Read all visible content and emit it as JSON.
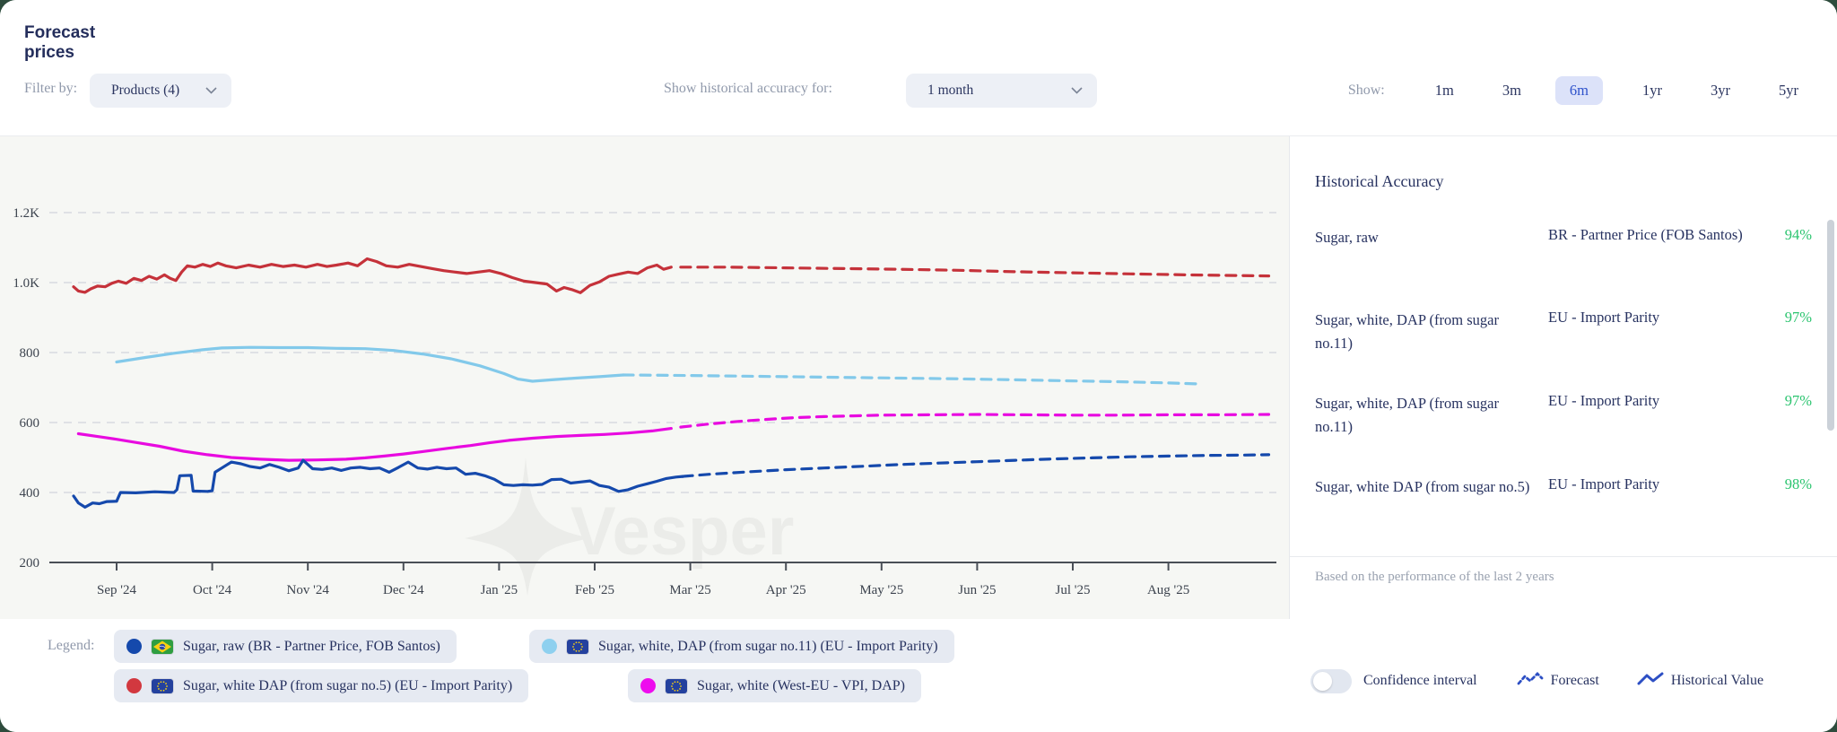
{
  "header": {
    "title": "Forecast prices",
    "filter_label": "Filter by:",
    "filter_value": "Products (4)",
    "accuracy_label": "Show historical accuracy for:",
    "accuracy_value": "1 month",
    "show_label": "Show:",
    "ranges": [
      "1m",
      "3m",
      "6m",
      "1yr",
      "3yr",
      "5yr"
    ],
    "selected_range": "6m"
  },
  "accuracy_panel": {
    "title": "Historical Accuracy",
    "rows": [
      {
        "product": "Sugar, raw",
        "source": "BR - Partner Price (FOB Santos)",
        "accuracy": "94%"
      },
      {
        "product": "Sugar, white, DAP (from sugar no.11)",
        "source": "EU - Import Parity",
        "accuracy": "97%"
      },
      {
        "product": "Sugar, white, DAP (from sugar no.11)",
        "source": "EU - Import Parity",
        "accuracy": "97%"
      },
      {
        "product": "Sugar, white DAP (from sugar no.5)",
        "source": "EU - Import Parity",
        "accuracy": "98%"
      }
    ],
    "footnote": "Based on the performance of the last 2 years"
  },
  "legend": {
    "label": "Legend:",
    "items": [
      {
        "label": "Sugar, raw (BR - Partner Price, FOB Santos)",
        "color": "#1549ac",
        "flag": "br"
      },
      {
        "label": "Sugar, white, DAP (from sugar no.11) (EU - Import Parity)",
        "color": "#8ed0ef",
        "flag": "eu"
      },
      {
        "label": "Sugar, white DAP (from sugar no.5) (EU - Import Parity)",
        "color": "#d2383f",
        "flag": "eu"
      },
      {
        "label": "Sugar, white (West-EU - VPI, DAP)",
        "color": "#ee0cee",
        "flag": "eu"
      }
    ]
  },
  "controls": {
    "confidence_label": "Confidence interval",
    "confidence_on": false,
    "forecast_label": "Forecast",
    "historical_label": "Historical Value"
  },
  "watermark": "Vesper",
  "colors": {
    "accent_blue": "#3053cb",
    "navy_text": "#273260",
    "green_accuracy": "#2bc46f"
  },
  "chart_data": {
    "type": "line",
    "title": "Forecast prices (6m view)",
    "xlabel": "",
    "ylabel": "",
    "ylim": [
      200,
      1250
    ],
    "grid": true,
    "x_labels": [
      "Sep '24",
      "Oct '24",
      "Nov '24",
      "Dec '24",
      "Jan '25",
      "Feb '25",
      "Mar '25",
      "Apr '25",
      "May '25",
      "Jun '25",
      "Jul '25",
      "Aug '25"
    ],
    "y_ticks": [
      {
        "label": "1.2K",
        "value": 1200
      },
      {
        "label": "1.0K",
        "value": 1000
      },
      {
        "label": "800",
        "value": 800
      },
      {
        "label": "600",
        "value": 600
      },
      {
        "label": "400",
        "value": 400
      },
      {
        "label": "200",
        "value": 200
      }
    ],
    "x_unit": "month index, 0 = Sep '24 tick",
    "series": [
      {
        "name": "Sugar, white, DAP (from sugar no.11) (EU - Import Parity)",
        "color": "#82c9ea",
        "historical": [
          [
            0,
            773
          ],
          [
            0.3,
            786
          ],
          [
            0.6,
            798
          ],
          [
            0.9,
            808
          ],
          [
            1.1,
            813
          ],
          [
            1.4,
            815
          ],
          [
            1.7,
            814
          ],
          [
            2.0,
            814
          ],
          [
            2.3,
            812
          ],
          [
            2.6,
            811
          ],
          [
            2.9,
            806
          ],
          [
            3.2,
            796
          ],
          [
            3.5,
            782
          ],
          [
            3.8,
            762
          ],
          [
            4.05,
            740
          ],
          [
            4.2,
            724
          ],
          [
            4.35,
            718
          ],
          [
            4.55,
            722
          ],
          [
            4.8,
            727
          ],
          [
            5.05,
            731
          ],
          [
            5.3,
            736
          ]
        ],
        "forecast": [
          [
            5.3,
            736
          ],
          [
            5.8,
            735
          ],
          [
            6.4,
            733
          ],
          [
            7.0,
            731
          ],
          [
            7.6,
            729
          ],
          [
            8.2,
            727
          ],
          [
            8.8,
            725
          ],
          [
            9.4,
            722
          ],
          [
            10.0,
            719
          ],
          [
            10.6,
            716
          ],
          [
            11.0,
            713
          ],
          [
            11.35,
            710
          ]
        ]
      },
      {
        "name": "Sugar, white DAP (from sugar no.5) (EU - Import Parity)",
        "color": "#c5323a",
        "historical": [
          [
            -0.45,
            988
          ],
          [
            -0.4,
            976
          ],
          [
            -0.33,
            972
          ],
          [
            -0.27,
            982
          ],
          [
            -0.2,
            990
          ],
          [
            -0.12,
            988
          ],
          [
            -0.05,
            998
          ],
          [
            0.02,
            1004
          ],
          [
            0.1,
            998
          ],
          [
            0.18,
            1012
          ],
          [
            0.26,
            1006
          ],
          [
            0.34,
            1018
          ],
          [
            0.42,
            1010
          ],
          [
            0.5,
            1022
          ],
          [
            0.56,
            1012
          ],
          [
            0.62,
            1006
          ],
          [
            0.68,
            1030
          ],
          [
            0.74,
            1048
          ],
          [
            0.82,
            1044
          ],
          [
            0.9,
            1052
          ],
          [
            0.98,
            1046
          ],
          [
            1.06,
            1056
          ],
          [
            1.14,
            1048
          ],
          [
            1.25,
            1042
          ],
          [
            1.38,
            1050
          ],
          [
            1.5,
            1044
          ],
          [
            1.62,
            1052
          ],
          [
            1.74,
            1046
          ],
          [
            1.86,
            1050
          ],
          [
            1.98,
            1044
          ],
          [
            2.1,
            1052
          ],
          [
            2.2,
            1046
          ],
          [
            2.3,
            1050
          ],
          [
            2.42,
            1056
          ],
          [
            2.52,
            1048
          ],
          [
            2.62,
            1068
          ],
          [
            2.72,
            1060
          ],
          [
            2.82,
            1048
          ],
          [
            2.94,
            1044
          ],
          [
            3.06,
            1052
          ],
          [
            3.18,
            1046
          ],
          [
            3.3,
            1040
          ],
          [
            3.42,
            1034
          ],
          [
            3.54,
            1030
          ],
          [
            3.66,
            1026
          ],
          [
            3.78,
            1030
          ],
          [
            3.9,
            1034
          ],
          [
            4.02,
            1026
          ],
          [
            4.14,
            1014
          ],
          [
            4.26,
            1004
          ],
          [
            4.38,
            1000
          ],
          [
            4.5,
            996
          ],
          [
            4.6,
            976
          ],
          [
            4.68,
            986
          ],
          [
            4.76,
            980
          ],
          [
            4.85,
            971
          ],
          [
            4.95,
            992
          ],
          [
            5.05,
            1002
          ],
          [
            5.15,
            1018
          ],
          [
            5.25,
            1024
          ],
          [
            5.35,
            1030
          ],
          [
            5.45,
            1026
          ],
          [
            5.55,
            1042
          ],
          [
            5.65,
            1050
          ],
          [
            5.72,
            1038
          ],
          [
            5.8,
            1044
          ]
        ],
        "forecast": [
          [
            5.9,
            1044
          ],
          [
            6.4,
            1044
          ],
          [
            7.0,
            1042
          ],
          [
            7.6,
            1040
          ],
          [
            8.2,
            1038
          ],
          [
            8.8,
            1035
          ],
          [
            9.4,
            1031
          ],
          [
            10.0,
            1028
          ],
          [
            10.6,
            1025
          ],
          [
            11.2,
            1022
          ],
          [
            12.05,
            1019
          ]
        ]
      },
      {
        "name": "Sugar, white (West-EU - VPI, DAP)",
        "color": "#e80ae0",
        "historical": [
          [
            -0.4,
            568
          ],
          [
            -0.2,
            560
          ],
          [
            0,
            552
          ],
          [
            0.2,
            543
          ],
          [
            0.45,
            532
          ],
          [
            0.7,
            518
          ],
          [
            0.95,
            508
          ],
          [
            1.2,
            500
          ],
          [
            1.5,
            495
          ],
          [
            1.8,
            492
          ],
          [
            2.1,
            493
          ],
          [
            2.4,
            495
          ],
          [
            2.6,
            499
          ],
          [
            2.8,
            504
          ],
          [
            3.0,
            510
          ],
          [
            3.2,
            517
          ],
          [
            3.45,
            526
          ],
          [
            3.7,
            534
          ],
          [
            3.9,
            542
          ],
          [
            4.1,
            549
          ],
          [
            4.35,
            555
          ],
          [
            4.6,
            560
          ],
          [
            4.85,
            563
          ],
          [
            5.1,
            566
          ],
          [
            5.35,
            570
          ],
          [
            5.6,
            576
          ],
          [
            5.8,
            583
          ]
        ],
        "forecast": [
          [
            5.9,
            587
          ],
          [
            6.2,
            596
          ],
          [
            6.5,
            603
          ],
          [
            6.8,
            609
          ],
          [
            7.1,
            614
          ],
          [
            7.4,
            617
          ],
          [
            7.7,
            619
          ],
          [
            8.0,
            621
          ],
          [
            8.5,
            622
          ],
          [
            9.0,
            623
          ],
          [
            9.5,
            622
          ],
          [
            10.0,
            621
          ],
          [
            10.5,
            621
          ],
          [
            11.0,
            622
          ],
          [
            11.5,
            622
          ],
          [
            12.05,
            623
          ]
        ]
      },
      {
        "name": "Sugar, raw (BR - Partner Price, FOB Santos)",
        "color": "#1549ac",
        "historical": [
          [
            -0.45,
            390
          ],
          [
            -0.4,
            370
          ],
          [
            -0.33,
            358
          ],
          [
            -0.25,
            370
          ],
          [
            -0.18,
            368
          ],
          [
            -0.1,
            374
          ],
          [
            0,
            375
          ],
          [
            0.04,
            400
          ],
          [
            0.2,
            399
          ],
          [
            0.4,
            402
          ],
          [
            0.6,
            400
          ],
          [
            0.63,
            408
          ],
          [
            0.66,
            448
          ],
          [
            0.78,
            449
          ],
          [
            0.8,
            404
          ],
          [
            0.95,
            403
          ],
          [
            1.0,
            405
          ],
          [
            1.03,
            458
          ],
          [
            1.1,
            470
          ],
          [
            1.2,
            487
          ],
          [
            1.3,
            482
          ],
          [
            1.4,
            474
          ],
          [
            1.5,
            470
          ],
          [
            1.6,
            480
          ],
          [
            1.7,
            472
          ],
          [
            1.8,
            462
          ],
          [
            1.9,
            470
          ],
          [
            1.95,
            492
          ],
          [
            2.05,
            468
          ],
          [
            2.15,
            466
          ],
          [
            2.25,
            470
          ],
          [
            2.35,
            463
          ],
          [
            2.45,
            470
          ],
          [
            2.55,
            472
          ],
          [
            2.65,
            468
          ],
          [
            2.75,
            470
          ],
          [
            2.85,
            458
          ],
          [
            2.95,
            472
          ],
          [
            3.05,
            487
          ],
          [
            3.15,
            470
          ],
          [
            3.25,
            467
          ],
          [
            3.35,
            472
          ],
          [
            3.45,
            468
          ],
          [
            3.55,
            470
          ],
          [
            3.65,
            452
          ],
          [
            3.75,
            455
          ],
          [
            3.85,
            448
          ],
          [
            3.95,
            438
          ],
          [
            4.05,
            422
          ],
          [
            4.15,
            420
          ],
          [
            4.25,
            422
          ],
          [
            4.35,
            421
          ],
          [
            4.45,
            423
          ],
          [
            4.55,
            437
          ],
          [
            4.65,
            438
          ],
          [
            4.75,
            427
          ],
          [
            4.85,
            430
          ],
          [
            4.95,
            433
          ],
          [
            5.05,
            420
          ],
          [
            5.15,
            415
          ],
          [
            5.25,
            403
          ],
          [
            5.35,
            408
          ],
          [
            5.45,
            418
          ],
          [
            5.55,
            425
          ],
          [
            5.65,
            432
          ],
          [
            5.75,
            440
          ],
          [
            5.85,
            444
          ],
          [
            5.92,
            446
          ]
        ],
        "forecast": [
          [
            5.92,
            446
          ],
          [
            6.2,
            452
          ],
          [
            6.6,
            459
          ],
          [
            7.0,
            465
          ],
          [
            7.4,
            470
          ],
          [
            7.8,
            475
          ],
          [
            8.2,
            480
          ],
          [
            8.6,
            484
          ],
          [
            9.0,
            488
          ],
          [
            9.4,
            492
          ],
          [
            9.8,
            496
          ],
          [
            10.2,
            499
          ],
          [
            10.6,
            502
          ],
          [
            11.0,
            504
          ],
          [
            11.4,
            506
          ],
          [
            11.8,
            507
          ],
          [
            12.05,
            508
          ]
        ]
      }
    ],
    "legend_position": "bottom",
    "style_note": "solid = historical value, dashed = forecast"
  }
}
